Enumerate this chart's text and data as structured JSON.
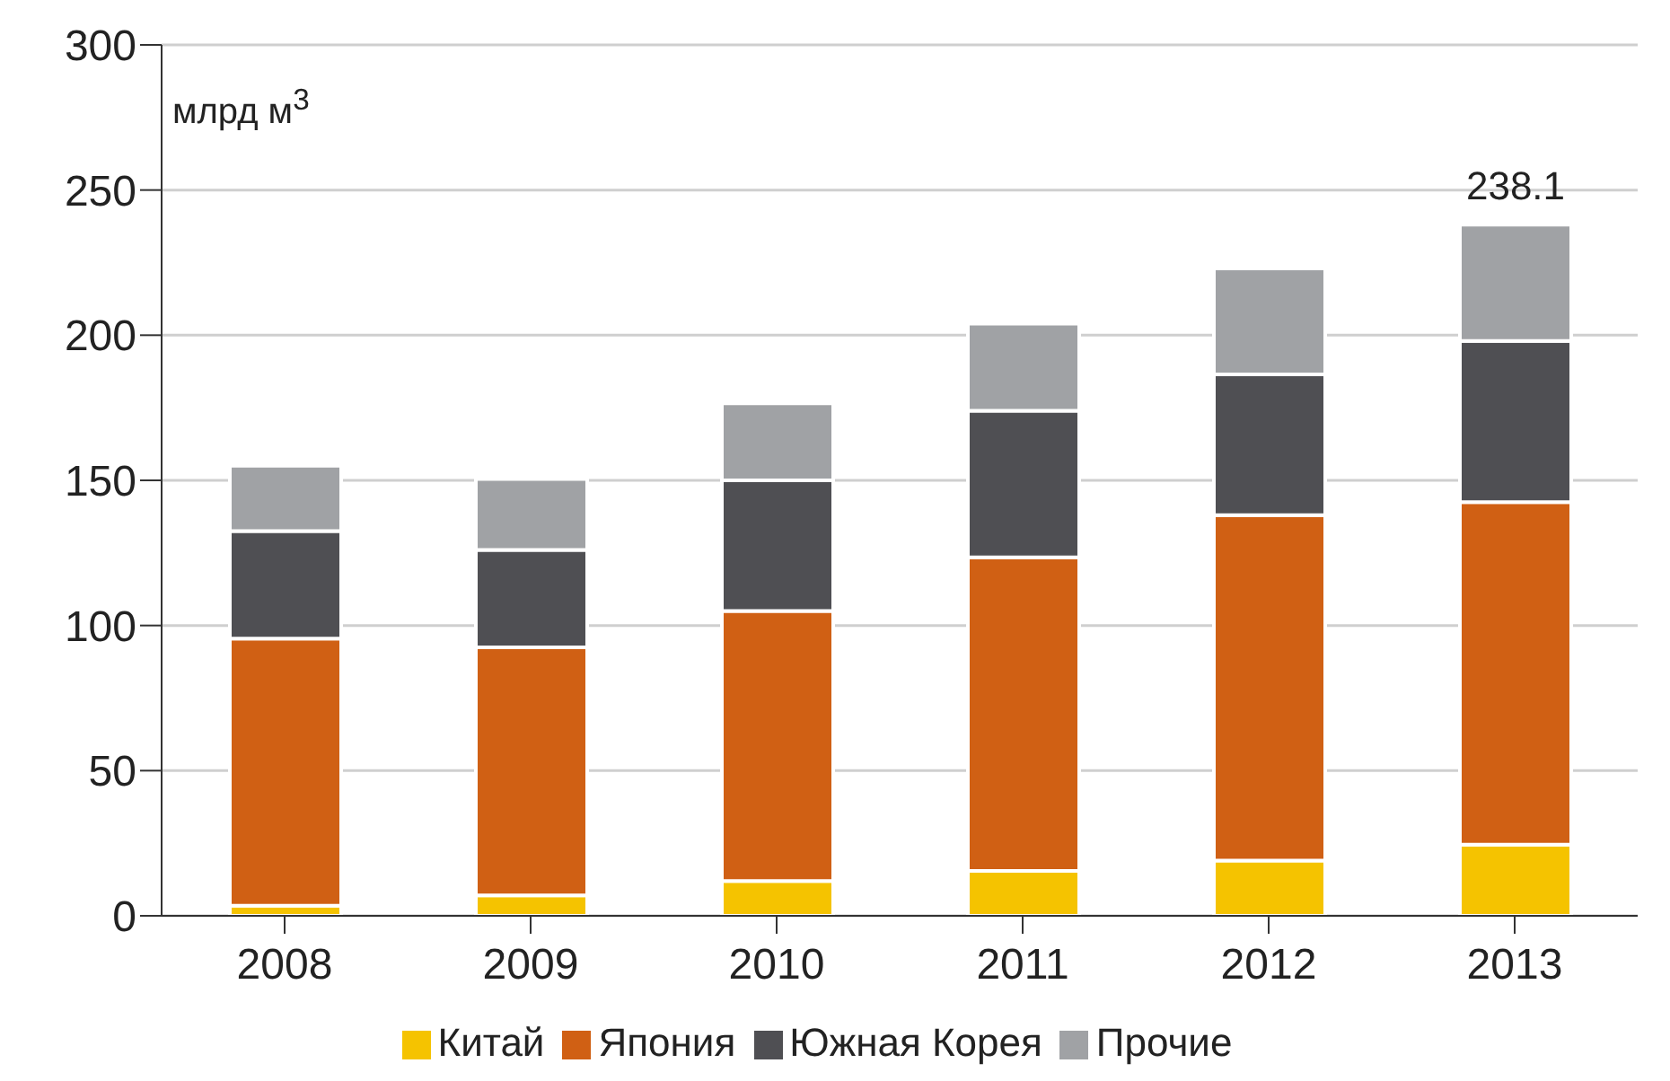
{
  "chart_data": {
    "type": "bar",
    "stacked": true,
    "ylabel": "млрд м$^{3}$",
    "categories": [
      "2008",
      "2009",
      "2010",
      "2011",
      "2012",
      "2013"
    ],
    "series": [
      {
        "name": "Китай",
        "color": "#f5c300",
        "values": [
          3.5,
          7,
          12,
          15.5,
          19,
          24.5
        ]
      },
      {
        "name": "Япония",
        "color": "#d06014",
        "values": [
          92,
          85.5,
          93,
          108,
          119,
          118
        ]
      },
      {
        "name": "Южная Корея",
        "color": "#4f4f53",
        "values": [
          37,
          33.5,
          45,
          50.5,
          48.5,
          55.5
        ]
      },
      {
        "name": "Прочие",
        "color": "#a0a2a5",
        "values": [
          22.5,
          24.5,
          26.5,
          30,
          36.5,
          40.1
        ]
      }
    ],
    "totals": [
      null,
      null,
      null,
      null,
      null,
      "238.1"
    ],
    "ylim": [
      0,
      300
    ],
    "yticks": [
      0,
      50,
      100,
      150,
      200,
      250,
      300
    ],
    "grid": "y",
    "legend": "bottom"
  }
}
